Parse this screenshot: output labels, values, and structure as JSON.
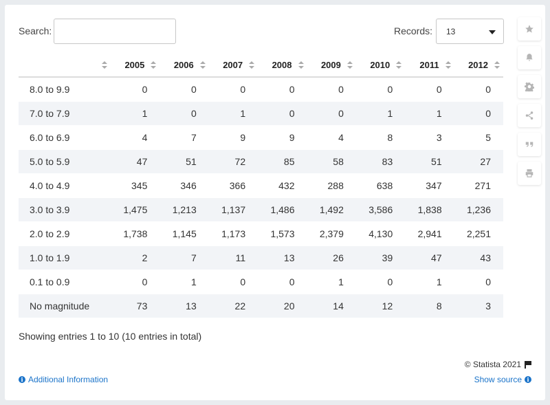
{
  "search": {
    "label": "Search:",
    "value": ""
  },
  "records": {
    "label": "Records:",
    "selected": "13"
  },
  "table": {
    "columns": [
      "",
      "2005",
      "2006",
      "2007",
      "2008",
      "2009",
      "2010",
      "2011",
      "2012"
    ],
    "rows": [
      [
        "8.0 to 9.9",
        "0",
        "0",
        "0",
        "0",
        "0",
        "0",
        "0",
        "0"
      ],
      [
        "7.0 to 7.9",
        "1",
        "0",
        "1",
        "0",
        "0",
        "1",
        "1",
        "0"
      ],
      [
        "6.0 to 6.9",
        "4",
        "7",
        "9",
        "9",
        "4",
        "8",
        "3",
        "5"
      ],
      [
        "5.0 to 5.9",
        "47",
        "51",
        "72",
        "85",
        "58",
        "83",
        "51",
        "27"
      ],
      [
        "4.0 to 4.9",
        "345",
        "346",
        "366",
        "432",
        "288",
        "638",
        "347",
        "271"
      ],
      [
        "3.0 to 3.9",
        "1,475",
        "1,213",
        "1,137",
        "1,486",
        "1,492",
        "3,586",
        "1,838",
        "1,236"
      ],
      [
        "2.0 to 2.9",
        "1,738",
        "1,145",
        "1,173",
        "1,573",
        "2,379",
        "4,130",
        "2,941",
        "2,251"
      ],
      [
        "1.0 to 1.9",
        "2",
        "7",
        "11",
        "13",
        "26",
        "39",
        "47",
        "43"
      ],
      [
        "0.1 to 0.9",
        "0",
        "1",
        "0",
        "0",
        "1",
        "0",
        "1",
        "0"
      ],
      [
        "No magnitude",
        "73",
        "13",
        "22",
        "20",
        "14",
        "12",
        "8",
        "3"
      ]
    ]
  },
  "footer": {
    "entries_text": "Showing entries 1 to 10 (10 entries in total)",
    "copyright": "© Statista 2021",
    "additional_info": "Additional Information",
    "show_source": "Show source"
  },
  "toolbar": {
    "icons": [
      "star-icon",
      "bell-icon",
      "gear-icon",
      "share-icon",
      "quote-icon",
      "print-icon"
    ]
  },
  "colors": {
    "link": "#1a73c9",
    "stripe": "#f2f4f7",
    "icon": "#b5b5b5"
  }
}
